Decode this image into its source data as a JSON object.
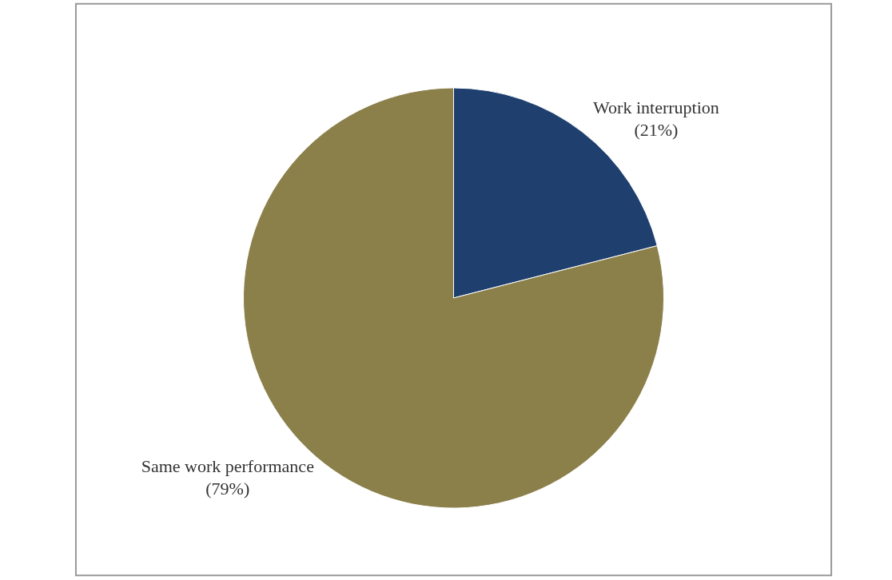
{
  "chart_data": {
    "type": "pie",
    "categories": [
      "Work interruption",
      "Same work performance"
    ],
    "values": [
      21,
      79
    ],
    "value_labels": [
      "(21%)",
      "(79%)"
    ],
    "colors": [
      "#1f3f6e",
      "#8b7f4a"
    ],
    "legend": false
  }
}
